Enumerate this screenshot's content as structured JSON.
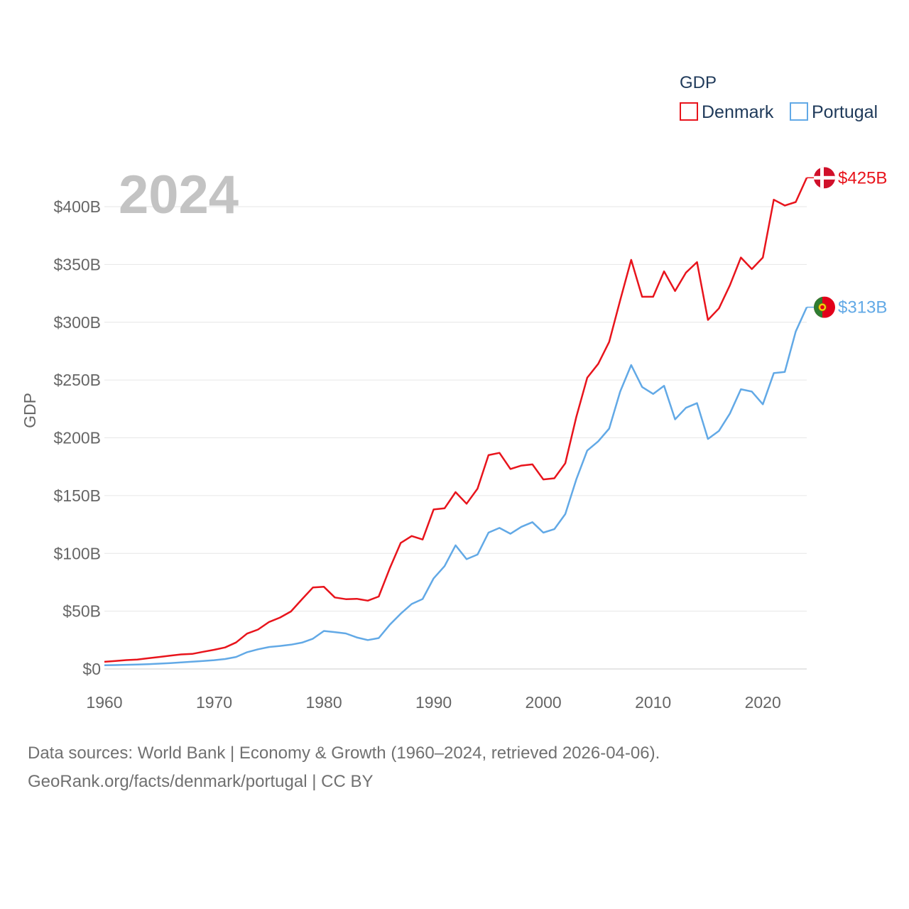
{
  "chart_data": {
    "type": "line",
    "title": "",
    "current_year_label": "2024",
    "ylabel": "GDP",
    "xlabel": "",
    "xlim": [
      1960,
      2024
    ],
    "ylim": [
      0,
      430
    ],
    "y_ticks": [
      0,
      50,
      100,
      150,
      200,
      250,
      300,
      350,
      400
    ],
    "y_tick_labels": [
      "$0",
      "$50B",
      "$100B",
      "$150B",
      "$200B",
      "$250B",
      "$300B",
      "$350B",
      "$400B"
    ],
    "x_ticks": [
      1960,
      1970,
      1980,
      1990,
      2000,
      2010,
      2020
    ],
    "x_tick_labels": [
      "1960",
      "1970",
      "1980",
      "1990",
      "2000",
      "2010",
      "2020"
    ],
    "grid": true,
    "legend": {
      "title": "GDP",
      "placement": "top-right",
      "items": [
        "Denmark",
        "Portugal"
      ]
    },
    "x": [
      1960,
      1961,
      1962,
      1963,
      1964,
      1965,
      1966,
      1967,
      1968,
      1969,
      1970,
      1971,
      1972,
      1973,
      1974,
      1975,
      1976,
      1977,
      1978,
      1979,
      1980,
      1981,
      1982,
      1983,
      1984,
      1985,
      1986,
      1987,
      1988,
      1989,
      1990,
      1991,
      1992,
      1993,
      1994,
      1995,
      1996,
      1997,
      1998,
      1999,
      2000,
      2001,
      2002,
      2003,
      2004,
      2005,
      2006,
      2007,
      2008,
      2009,
      2010,
      2011,
      2012,
      2013,
      2014,
      2015,
      2016,
      2017,
      2018,
      2019,
      2020,
      2021,
      2022,
      2023,
      2024
    ],
    "series": [
      {
        "name": "Denmark",
        "color": "#e8141c",
        "end_label": "$425B",
        "flag": "denmark-flag-icon",
        "values": [
          6.2,
          6.9,
          7.7,
          8.1,
          9.3,
          10.4,
          11.5,
          12.6,
          13.0,
          14.9,
          16.6,
          18.6,
          22.9,
          30.6,
          34.1,
          40.6,
          44.5,
          49.8,
          60.3,
          70.5,
          71.1,
          61.9,
          60.4,
          60.7,
          59.1,
          62.7,
          87.0,
          109.0,
          115.0,
          112.0,
          138.0,
          139.0,
          153.0,
          143.0,
          156.0,
          185.0,
          187.0,
          173.0,
          176.0,
          177.0,
          164.0,
          165.0,
          178.0,
          218.0,
          252.0,
          264.0,
          283.0,
          319.0,
          354.0,
          322.0,
          322.0,
          344.0,
          327.0,
          343.0,
          352.0,
          302.0,
          312.0,
          332.0,
          356.0,
          346.0,
          356.0,
          406.0,
          401.0,
          404.0,
          425.0
        ]
      },
      {
        "name": "Portugal",
        "color": "#62a9e6",
        "end_label": "$313B",
        "flag": "portugal-flag-icon",
        "values": [
          3.2,
          3.4,
          3.6,
          3.9,
          4.2,
          4.6,
          5.1,
          5.7,
          6.3,
          6.9,
          7.6,
          8.6,
          10.4,
          14.5,
          17.0,
          19.0,
          19.9,
          21.0,
          22.8,
          26.2,
          32.9,
          31.9,
          30.7,
          27.3,
          25.0,
          26.7,
          38.2,
          47.8,
          56.2,
          60.5,
          78.4,
          89.0,
          107.0,
          95.0,
          99.0,
          118.0,
          122.0,
          117.0,
          123.0,
          127.0,
          118.0,
          121.0,
          134.0,
          164.0,
          189.0,
          197.0,
          208.0,
          240.0,
          263.0,
          244.0,
          238.0,
          245.0,
          216.0,
          226.0,
          230.0,
          199.0,
          206.0,
          221.0,
          242.0,
          240.0,
          229.0,
          256.0,
          257.0,
          292.0,
          313.0
        ]
      }
    ]
  },
  "source": {
    "line1": "Data sources: World Bank | Economy & Growth (1960–2024, retrieved 2026-04-06).",
    "line2": "GeoRank.org/facts/denmark/portugal | CC BY"
  }
}
